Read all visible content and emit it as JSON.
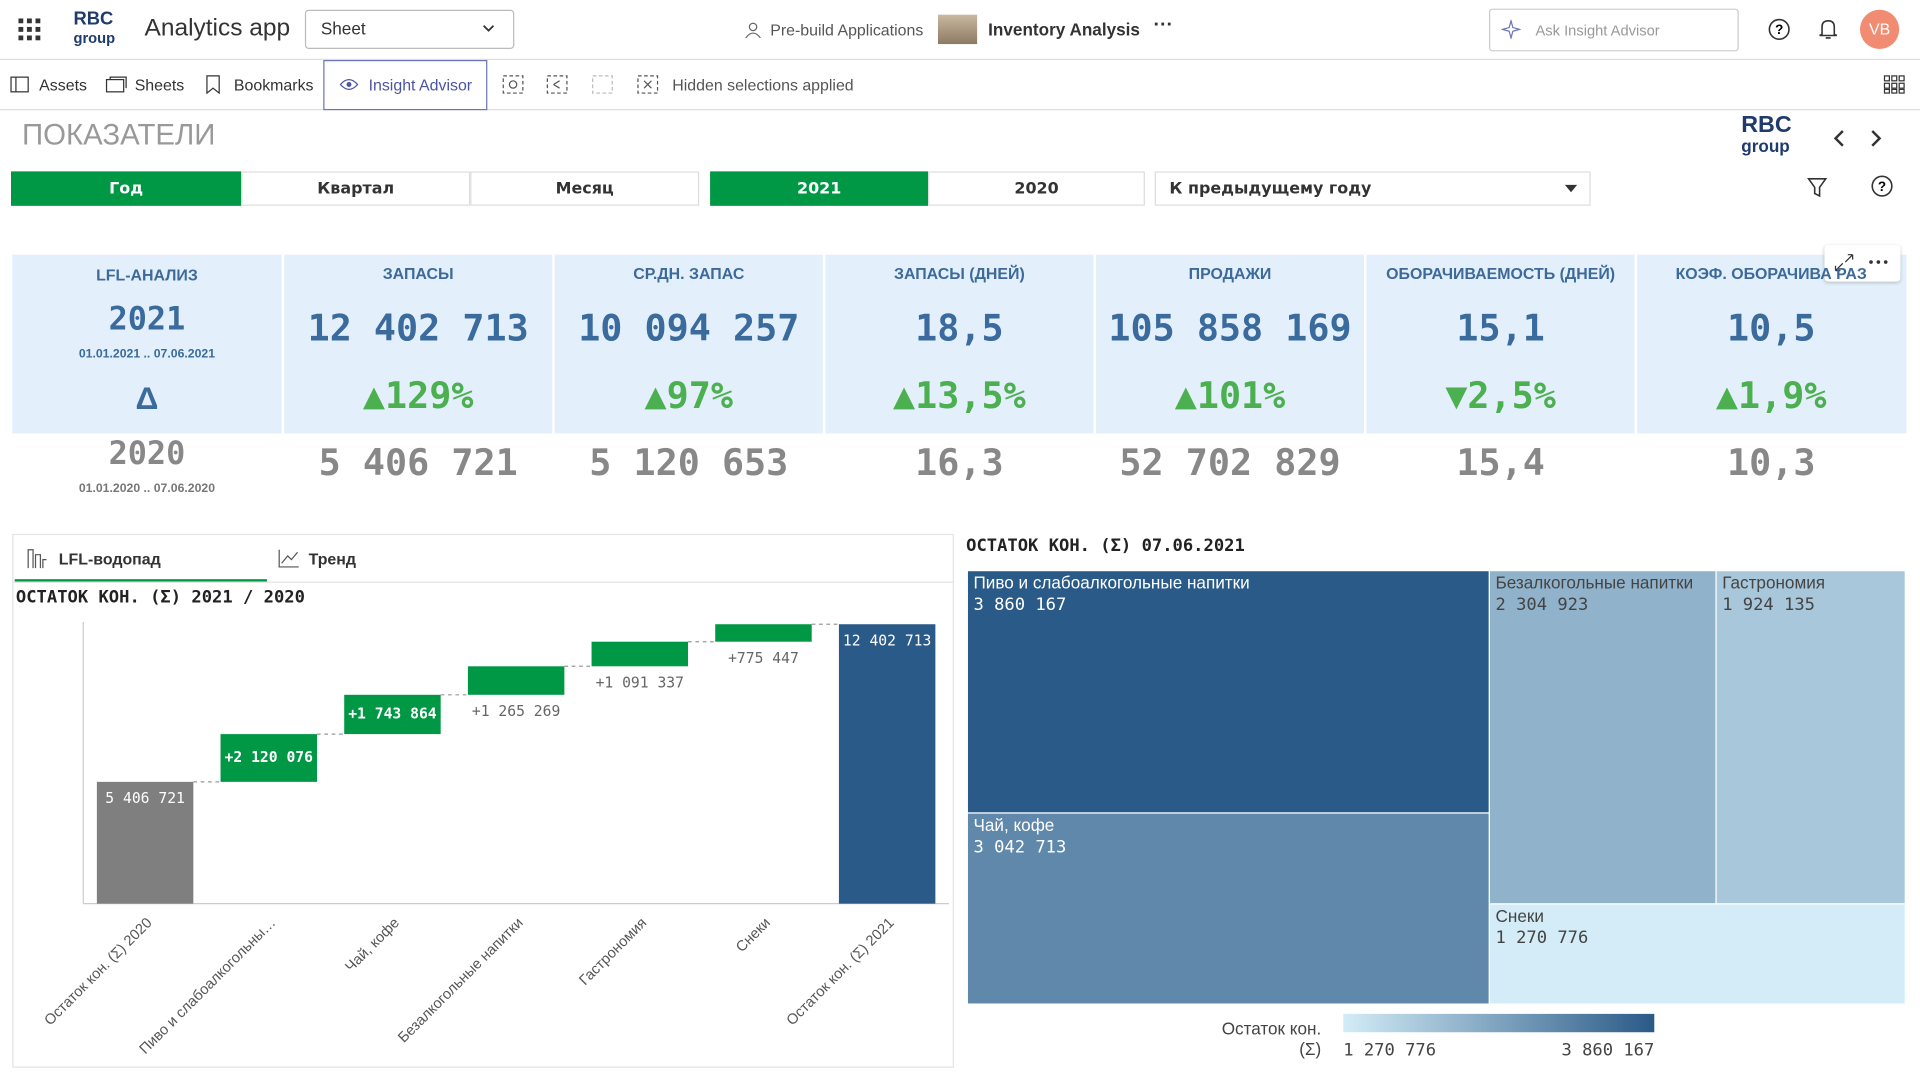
{
  "header": {
    "logo": [
      "RBC",
      "group"
    ],
    "app_title": "Analytics app",
    "sheet_select": "Sheet",
    "prebuild": "Pre-build Applications",
    "app_name": "Inventory Analysis",
    "ask": "Ask Insight Advisor",
    "avatar": "VB"
  },
  "toolbar": [
    "Assets",
    "Sheets",
    "Bookmarks",
    "Insight Advisor",
    "Hidden selections applied"
  ],
  "sheet": {
    "title": "ПОКАЗАТЕЛИ",
    "logo": [
      "RBC",
      "group"
    ]
  },
  "filters": {
    "period": [
      "Год",
      "Квартал",
      "Месяц"
    ],
    "year": [
      "2021",
      "2020"
    ],
    "compare": "К предыдущему году"
  },
  "kpi": {
    "lfl": {
      "title": "LFL-АНАЛИЗ",
      "current_year": "2021",
      "current_range": "01.01.2021 .. 07.06.2021",
      "delta": "Δ",
      "previous_year": "2020",
      "previous_range": "01.01.2020 .. 07.06.2020"
    },
    "columns": [
      {
        "title": "ЗАПАСЫ",
        "current": "12 402 713",
        "change": "▲129%",
        "previous": "5 406 721"
      },
      {
        "title": "СР.ДН. ЗАПАС",
        "current": "10 094 257",
        "change": "▲97%",
        "previous": "5 120 653"
      },
      {
        "title": "ЗАПАСЫ (ДНЕЙ)",
        "current": "18,5",
        "change": "▲13,5%",
        "previous": "16,3"
      },
      {
        "title": "ПРОДАЖИ",
        "current": "105 858 169",
        "change": "▲101%",
        "previous": "52 702 829"
      },
      {
        "title": "ОБОРАЧИВАЕМОСТЬ (ДНЕЙ)",
        "current": "15,1",
        "change": "▼2,5%",
        "previous": "15,4"
      },
      {
        "title": "КОЭФ. ОБОРАЧИВА РАЗ",
        "current": "10,5",
        "change": "▲1,9%",
        "previous": "10,3"
      }
    ]
  },
  "waterfall": {
    "tabs": [
      "LFL-водопад",
      "Тренд"
    ],
    "chart_data": {
      "type": "waterfall",
      "title": "ОСТАТОК КОН. (Σ) 2021 / 2020",
      "categories": [
        "Остаток кон. (Σ) 2020",
        "Пиво и слабоалкогольны…",
        "Чай, кофе",
        "Безалкогольные напитки",
        "Гастрономия",
        "Снеки",
        "Остаток кон. (Σ) 2021"
      ],
      "values": [
        5406721,
        2120076,
        1743864,
        1265269,
        1091337,
        775447,
        12402713
      ],
      "value_labels": [
        "5 406 721",
        "+2 120 076",
        "+1 743 864",
        "+1 265 269",
        "+1 091 337",
        "+775 447",
        "12 402 713"
      ],
      "colors": [
        "#7f7f7f",
        "#009845",
        "#009845",
        "#009845",
        "#009845",
        "#009845",
        "#2a5a87"
      ],
      "ylim": [
        0,
        12500000
      ]
    }
  },
  "treemap": {
    "chart_data": {
      "type": "treemap",
      "title": "ОСТАТОК КОН. (Σ) 07.06.2021",
      "categories": [
        "Пиво и слабоалкогольные напитки",
        "Чай, кофе",
        "Безалкогольные напитки",
        "Гастрономия",
        "Снеки"
      ],
      "values": [
        3860167,
        3042713,
        2304923,
        1924135,
        1270776
      ],
      "value_labels": [
        "3 860 167",
        "3 042 713",
        "2 304 923",
        "1 924 135",
        "1 270 776"
      ],
      "color_range": [
        "#d3ecf7",
        "#2a5a87"
      ],
      "legend": {
        "title": [
          "Остаток кон.",
          "(Σ)"
        ],
        "min": {
          "value": 1270776,
          "label": "1 270 776"
        },
        "max": {
          "value": 3860167,
          "label": "3 860 167"
        }
      }
    }
  }
}
